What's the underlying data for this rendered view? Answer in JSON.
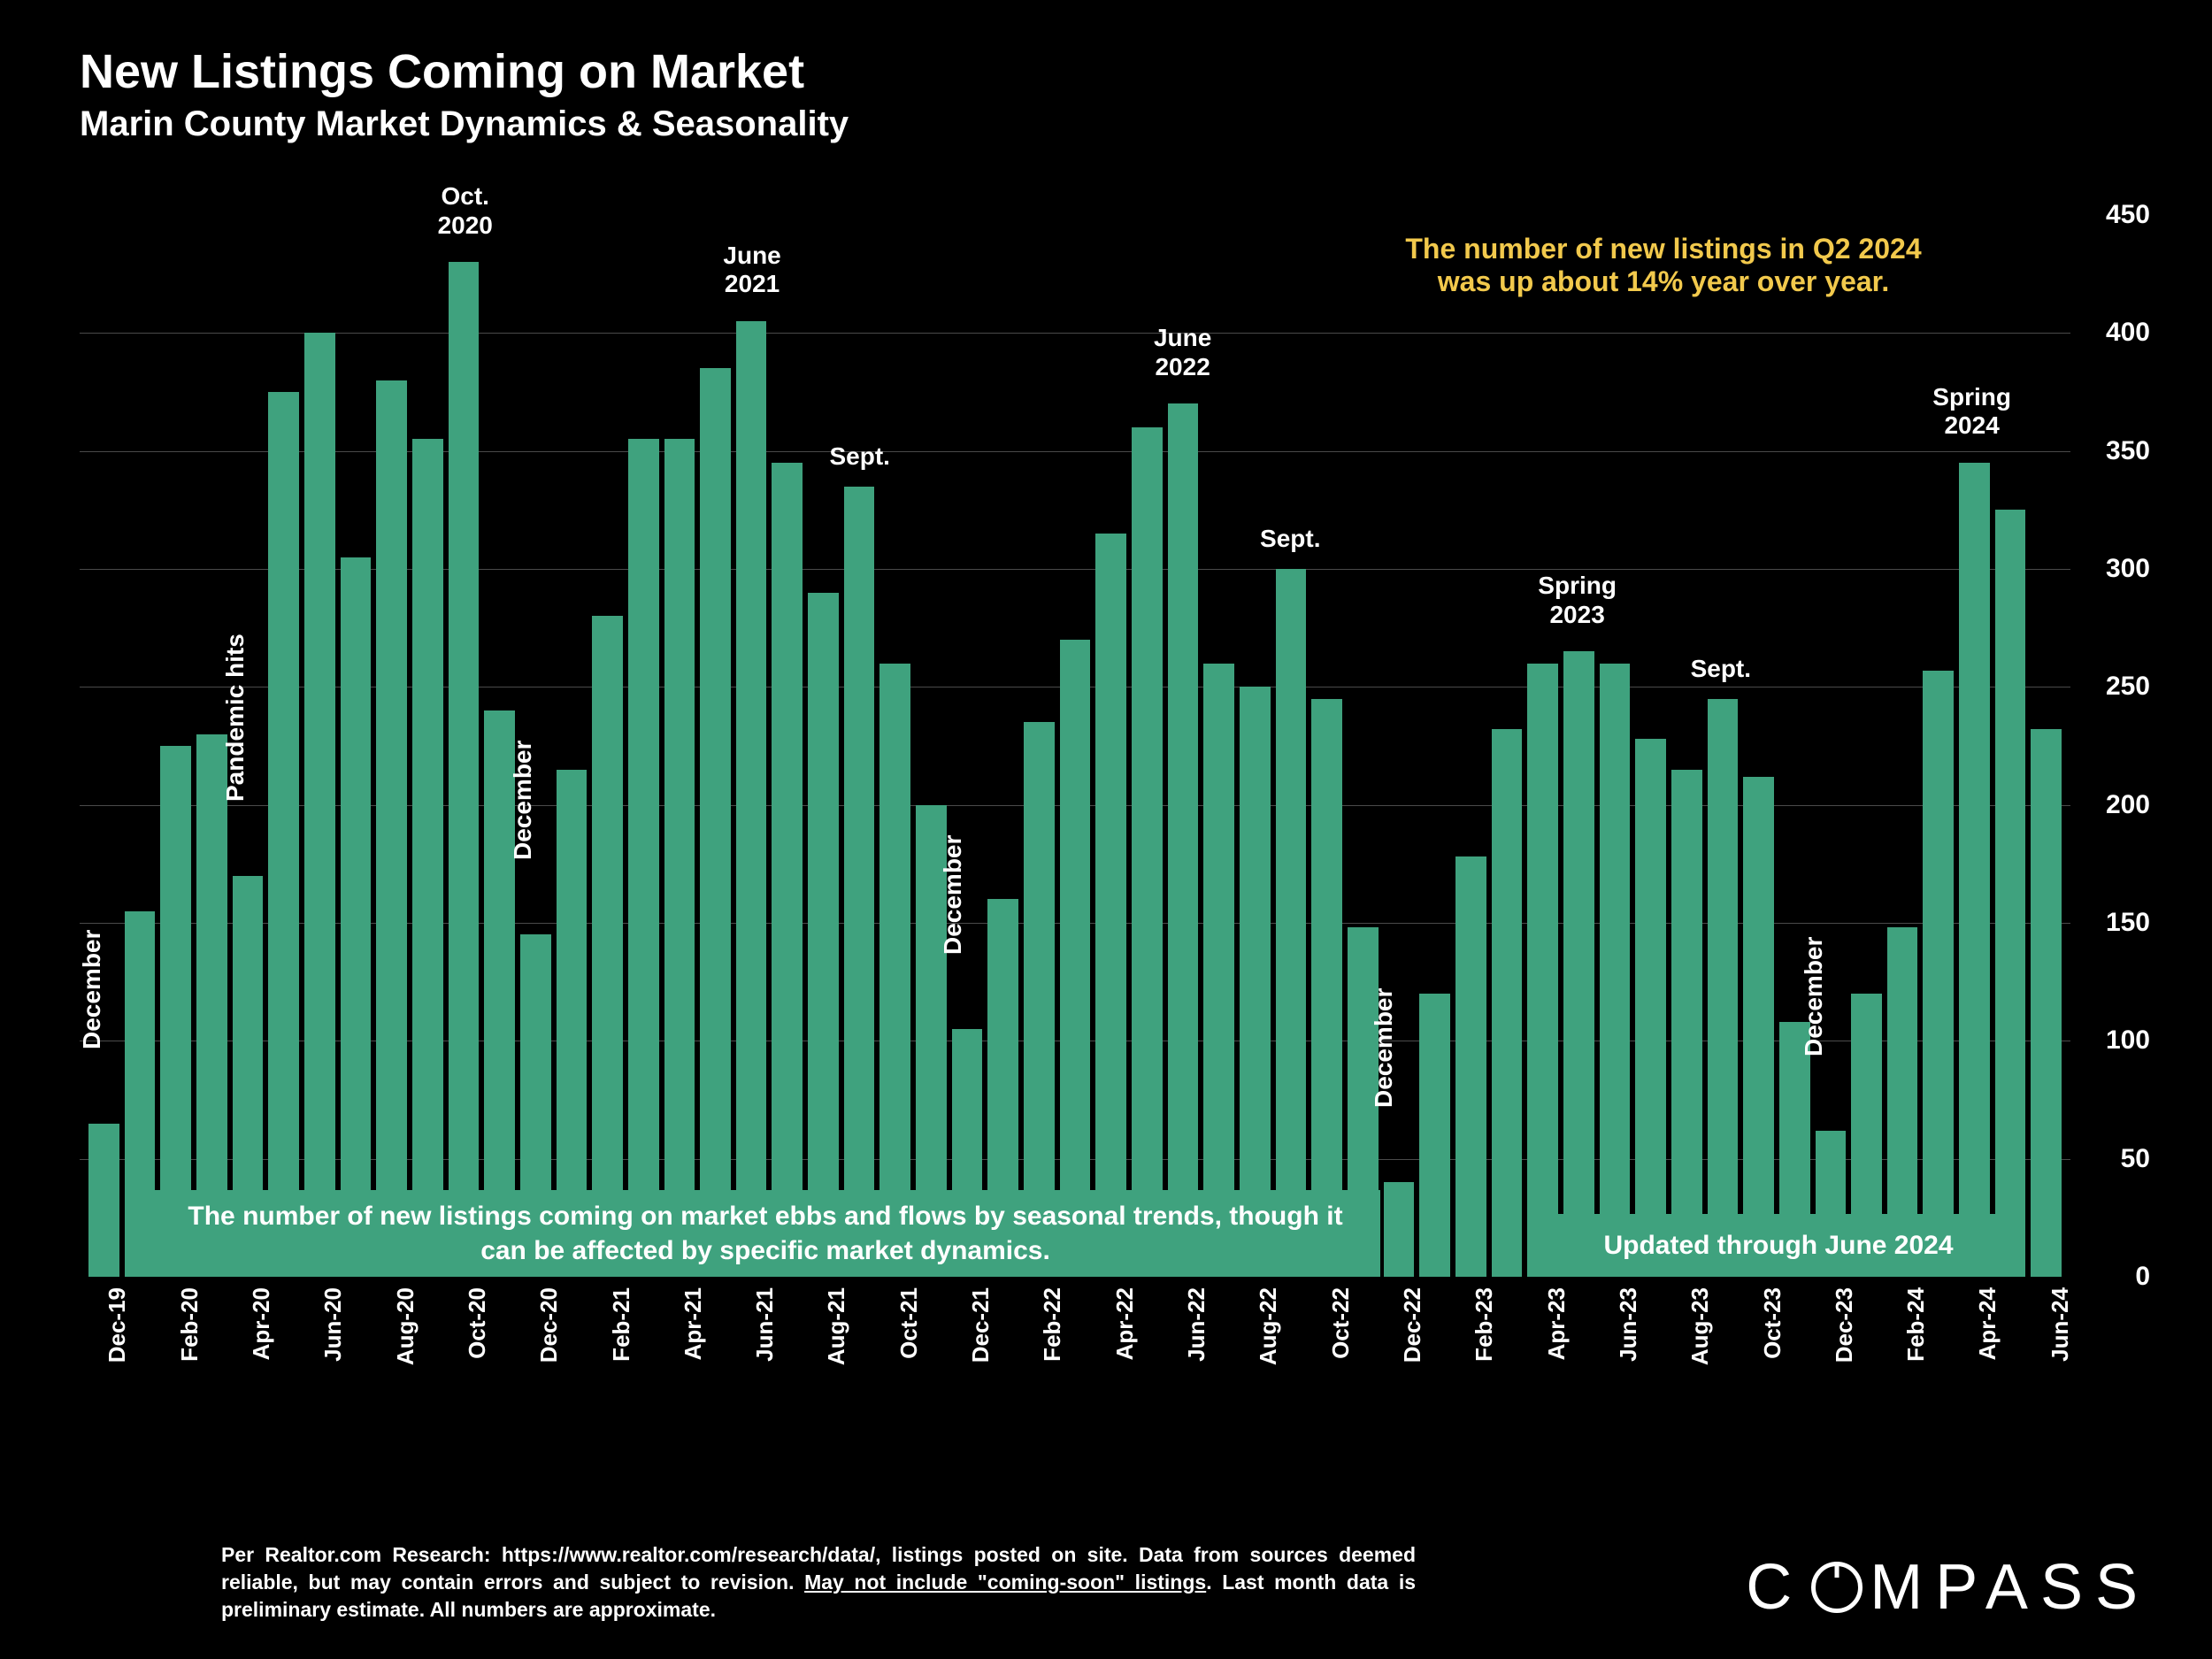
{
  "title": "New Listings Coming on Market",
  "subtitle": "Marin County Market Dynamics & Seasonality",
  "chart": {
    "type": "bar",
    "bar_color": "#3fa27e",
    "background_color": "#000000",
    "grid_color": "#4a4a4a",
    "text_color": "#ffffff",
    "highlight_color": "#f2c94c",
    "ylim": [
      0,
      450
    ],
    "ytick_step": 50,
    "yticks": [
      0,
      50,
      100,
      150,
      200,
      250,
      300,
      350,
      400,
      450
    ],
    "tick_fontsize": 30,
    "x_labels": [
      "Dec-19",
      "",
      "Feb-20",
      "",
      "Apr-20",
      "",
      "Jun-20",
      "",
      "Aug-20",
      "",
      "Oct-20",
      "",
      "Dec-20",
      "",
      "Feb-21",
      "",
      "Apr-21",
      "",
      "Jun-21",
      "",
      "Aug-21",
      "",
      "Oct-21",
      "",
      "Dec-21",
      "",
      "Feb-22",
      "",
      "Apr-22",
      "",
      "Jun-22",
      "",
      "Aug-22",
      "",
      "Oct-22",
      "",
      "Dec-22",
      "",
      "Feb-23",
      "",
      "Apr-23",
      "",
      "Jun-23",
      "",
      "Aug-23",
      "",
      "Oct-23",
      "",
      "Dec-23",
      "",
      "Feb-24",
      "",
      "Apr-24",
      "",
      "Jun-24"
    ],
    "values": [
      65,
      155,
      225,
      230,
      170,
      375,
      400,
      305,
      380,
      355,
      430,
      240,
      145,
      215,
      280,
      355,
      355,
      385,
      405,
      345,
      290,
      335,
      260,
      200,
      105,
      160,
      235,
      270,
      315,
      360,
      370,
      260,
      250,
      300,
      245,
      148,
      40,
      120,
      178,
      232,
      260,
      265,
      260,
      228,
      215,
      245,
      212,
      108,
      62,
      120,
      148,
      257,
      345,
      325,
      232
    ],
    "callouts": [
      {
        "text": "Oct.\n2020",
        "bar_index": 10,
        "y_offset": -90
      },
      {
        "text": "June\n2021",
        "bar_index": 18,
        "y_offset": -90
      },
      {
        "text": "Sept.",
        "bar_index": 21,
        "y_offset": -50
      },
      {
        "text": "June\n2022",
        "bar_index": 30,
        "y_offset": -90
      },
      {
        "text": "Sept.",
        "bar_index": 33,
        "y_offset": -50
      },
      {
        "text": "Spring\n2023",
        "bar_index": 41,
        "y_offset": -90
      },
      {
        "text": "Sept.",
        "bar_index": 45,
        "y_offset": -50
      },
      {
        "text": "Spring\n2024",
        "bar_index": 52,
        "y_offset": -90
      }
    ],
    "highlight_text": "The number of new listings in Q2 2024\nwas up about 14% year over year.",
    "vertical_labels": [
      {
        "text": "December",
        "bar_index": 0
      },
      {
        "text": "Pandemic hits",
        "bar_index": 4
      },
      {
        "text": "December",
        "bar_index": 12
      },
      {
        "text": "December",
        "bar_index": 24
      },
      {
        "text": "December",
        "bar_index": 36
      },
      {
        "text": "December",
        "bar_index": 48
      }
    ],
    "caption_left": "The number of new listings coming on market ebbs and flows by\nseasonal trends, though it can be affected by specific market dynamics.",
    "caption_right": "Updated through June 2024"
  },
  "footnote_1": "Per Realtor.com Research:  https://www.realtor.com/research/data/, listings posted on site. Data from sources deemed reliable, but may contain errors and subject to revision. ",
  "footnote_underline": "May not include \"coming-soon\" listings",
  "footnote_2": ". Last month data is preliminary estimate. All numbers are approximate.",
  "logo_text_pre": "C",
  "logo_text_post": "MPASS"
}
